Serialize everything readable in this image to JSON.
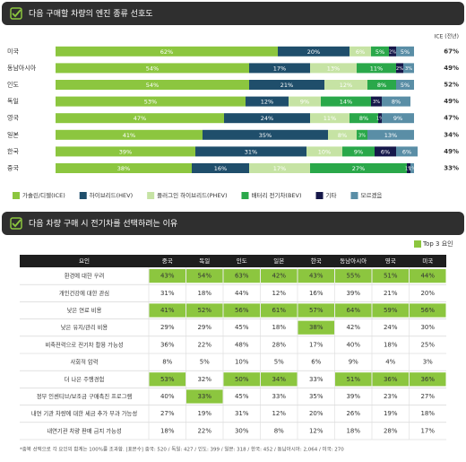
{
  "chart_data": {
    "type": "bar",
    "orientation": "horizontal",
    "stacked": true,
    "title": "다음 구매할 차량의 엔진 종류 선호도",
    "categories": [
      "미국",
      "동남아시아",
      "인도",
      "독일",
      "영국",
      "일본",
      "한국",
      "중국"
    ],
    "xlim": [
      0,
      100
    ],
    "legend": "bottom",
    "side_title": "ICE (전년)",
    "side_values": [
      "67%",
      "49%",
      "52%",
      "49%",
      "47%",
      "34%",
      "49%",
      "33%"
    ],
    "series": [
      {
        "name": "가솔린/디젤(ICE)",
        "color": "#8cc63f",
        "text_color": "#ffffff",
        "values": [
          62,
          54,
          54,
          53,
          47,
          41,
          39,
          38
        ],
        "value_labels": [
          "62%",
          "54%",
          "54%",
          "53%",
          "47%",
          "41%",
          "39%",
          "38%"
        ]
      },
      {
        "name": "하이브리드(HEV)",
        "color": "#1f4e6b",
        "text_color": "#ffffff",
        "values": [
          20,
          17,
          21,
          12,
          24,
          35,
          31,
          16
        ],
        "value_labels": [
          "20%",
          "17%",
          "21%",
          "12%",
          "24%",
          "35%",
          "31%",
          "16%"
        ]
      },
      {
        "name": "플러그인 하이브리드(PHEV)",
        "color": "#c6e3a4",
        "text_color": "#ffffff",
        "values": [
          6,
          13,
          12,
          9,
          11,
          8,
          10,
          17
        ],
        "value_labels": [
          "6%",
          "13%",
          "12%",
          "9%",
          "11%",
          "8%",
          "10%",
          "17%"
        ]
      },
      {
        "name": "배터리 전기차(BEV)",
        "color": "#2aa84a",
        "text_color": "#ffffff",
        "values": [
          5,
          11,
          8,
          14,
          8,
          3,
          9,
          27
        ],
        "value_labels": [
          "5%",
          "11%",
          "8%",
          "14%",
          "8%",
          "3%",
          "9%",
          "27%"
        ]
      },
      {
        "name": "기타",
        "color": "#16184a",
        "text_color": "#ffffff",
        "values": [
          2,
          2,
          null,
          3,
          1,
          null,
          6,
          1
        ],
        "value_labels": [
          "2%",
          "2%",
          null,
          "3%",
          "1%",
          null,
          "6%",
          "1%"
        ]
      },
      {
        "name": "모르겠음",
        "color": "#5a8ea6",
        "text_color": "#ffffff",
        "values": [
          5,
          3,
          5,
          8,
          9,
          13,
          6,
          1
        ],
        "value_labels": [
          "5%",
          "3%",
          "5%",
          "8%",
          "9%",
          "13%",
          "6%",
          "1%"
        ]
      }
    ]
  },
  "table": {
    "title": "다음 차량 구매 시 전기차를 선택하려는 이유",
    "legend": "Top 3 요인",
    "highlight_color": "#8cc63f",
    "header": [
      "요인",
      "중국",
      "독일",
      "인도",
      "일본",
      "한국",
      "동남아시아",
      "영국",
      "미국"
    ],
    "rows": [
      [
        "환경에 대한 우려",
        "43%",
        "54%",
        "63%",
        "42%",
        "43%",
        "55%",
        "51%",
        "44%"
      ],
      [
        "개인건강에 대한 관심",
        "31%",
        "18%",
        "44%",
        "12%",
        "16%",
        "39%",
        "21%",
        "20%"
      ],
      [
        "낮은 연료 비용",
        "41%",
        "52%",
        "56%",
        "61%",
        "57%",
        "64%",
        "59%",
        "56%"
      ],
      [
        "낮은 유지/관리 비용",
        "29%",
        "29%",
        "45%",
        "18%",
        "38%",
        "42%",
        "24%",
        "30%"
      ],
      [
        "비축전력으로 전기차 활용 가능성",
        "36%",
        "22%",
        "48%",
        "28%",
        "17%",
        "40%",
        "18%",
        "25%"
      ],
      [
        "사회적 압력",
        "8%",
        "5%",
        "10%",
        "5%",
        "6%",
        "9%",
        "4%",
        "3%"
      ],
      [
        "더 나은 주행경험",
        "53%",
        "32%",
        "50%",
        "34%",
        "33%",
        "51%",
        "36%",
        "36%"
      ],
      [
        "정부 인센티브/보조금 구매촉진 프로그램",
        "40%",
        "33%",
        "45%",
        "33%",
        "35%",
        "39%",
        "23%",
        "27%"
      ],
      [
        "내연 기관 차량에 대한 세금 추가 부과 가능성",
        "27%",
        "19%",
        "31%",
        "12%",
        "20%",
        "26%",
        "19%",
        "18%"
      ],
      [
        "내연기관 차량 판매 금지 가능성",
        "18%",
        "22%",
        "30%",
        "8%",
        "12%",
        "18%",
        "28%",
        "17%"
      ]
    ],
    "top3": [
      [
        true,
        true,
        true,
        true,
        true,
        true,
        true,
        true
      ],
      [
        false,
        false,
        false,
        false,
        false,
        false,
        false,
        false
      ],
      [
        true,
        true,
        true,
        true,
        true,
        true,
        true,
        true
      ],
      [
        false,
        false,
        false,
        false,
        true,
        false,
        false,
        false
      ],
      [
        false,
        false,
        false,
        false,
        false,
        false,
        false,
        false
      ],
      [
        false,
        false,
        false,
        false,
        false,
        false,
        false,
        false
      ],
      [
        true,
        false,
        true,
        true,
        false,
        true,
        true,
        true
      ],
      [
        false,
        true,
        false,
        false,
        false,
        false,
        false,
        false
      ],
      [
        false,
        false,
        false,
        false,
        false,
        false,
        false,
        false
      ],
      [
        false,
        false,
        false,
        false,
        false,
        false,
        false,
        false
      ]
    ]
  },
  "footnote": "*중복 선택으로 각 요인의 합계는 100%를 초과함. [표본수] 중국: 520 / 독일: 427 / 인도: 399 / 일본: 318 / 한국: 452 / 동남아시아: 2,064 / 미국: 270"
}
